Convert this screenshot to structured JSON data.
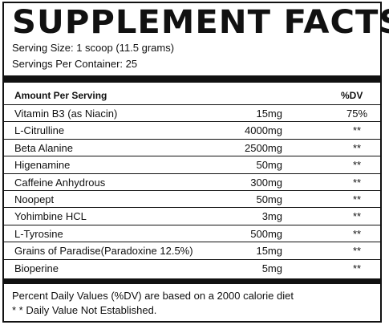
{
  "title": "SUPPLEMENT FACTS",
  "serving_size": "Serving Size: 1 scoop (11.5 grams)",
  "servings_per_container": "Servings Per Container: 25",
  "header": {
    "amount_label": "Amount Per Serving",
    "dv_label": "%DV"
  },
  "rows": [
    {
      "name": "Vitamin B3 (as Niacin)",
      "amount": "15mg",
      "dv": "75%"
    },
    {
      "name": "L-Citrulline",
      "amount": "4000mg",
      "dv": "**"
    },
    {
      "name": "Beta Alanine",
      "amount": "2500mg",
      "dv": "**"
    },
    {
      "name": "Higenamine",
      "amount": "50mg",
      "dv": "**"
    },
    {
      "name": "Caffeine Anhydrous",
      "amount": "300mg",
      "dv": "**"
    },
    {
      "name": "Noopept",
      "amount": "50mg",
      "dv": "**"
    },
    {
      "name": "Yohimbine HCL",
      "amount": "3mg",
      "dv": "**"
    },
    {
      "name": "L-Tyrosine",
      "amount": "500mg",
      "dv": "**"
    },
    {
      "name": "Grains of Paradise(Paradoxine 12.5%)",
      "amount": "15mg",
      "dv": "**"
    },
    {
      "name": "Bioperine",
      "amount": "5mg",
      "dv": "**"
    }
  ],
  "footnotes": {
    "daily_values": "Percent Daily Values (%DV) are  based on a 2000 calorie diet",
    "not_established": "* * Daily Value Not Established."
  }
}
